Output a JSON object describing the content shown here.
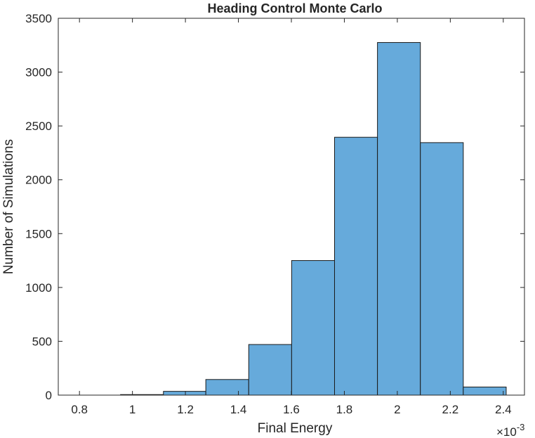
{
  "chart_data": {
    "type": "histogram",
    "title": "Heading Control Monte Carlo",
    "xlabel": "Final Energy",
    "ylabel": "Number of Simulations",
    "x_exponent": {
      "base": "×10",
      "power": "-3"
    },
    "xlim": [
      0.72,
      2.48
    ],
    "ylim": [
      0,
      3500
    ],
    "xticks": [
      0.8,
      1,
      1.2,
      1.4,
      1.6,
      1.8,
      2,
      2.2,
      2.4
    ],
    "xtick_labels": [
      "0.8",
      "1",
      "1.2",
      "1.4",
      "1.6",
      "1.8",
      "2",
      "2.2",
      "2.4"
    ],
    "yticks": [
      0,
      500,
      1000,
      1500,
      2000,
      2500,
      3000,
      3500
    ],
    "ytick_labels": [
      "0",
      "500",
      "1000",
      "1500",
      "2000",
      "2500",
      "3000",
      "3500"
    ],
    "bin_edges": [
      0.955,
      1.117,
      1.277,
      1.439,
      1.601,
      1.763,
      1.925,
      2.087,
      2.249,
      2.411
    ],
    "values": [
      5,
      35,
      145,
      470,
      1250,
      2395,
      3275,
      2345,
      75
    ],
    "bar_color": "#66AADB",
    "edge_color": "#1a1a1a",
    "grid": false,
    "legend": "none"
  }
}
